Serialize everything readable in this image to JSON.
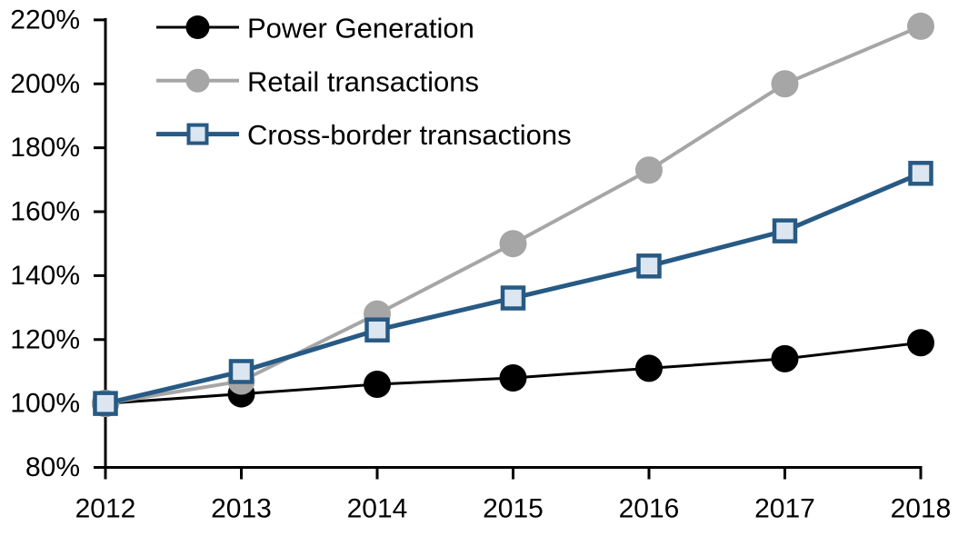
{
  "chart_data": {
    "type": "line",
    "title": "",
    "x": [
      2012,
      2013,
      2014,
      2015,
      2016,
      2017,
      2018
    ],
    "x_tick_labels": [
      "2012",
      "2013",
      "2014",
      "2015",
      "2016",
      "2017",
      "2018"
    ],
    "y_axis": {
      "min": 80,
      "max": 220,
      "step": 20,
      "unit": "%",
      "tick_labels": [
        "80%",
        "100%",
        "120%",
        "140%",
        "160%",
        "180%",
        "200%",
        "220%"
      ]
    },
    "grid": false,
    "legend_position": "top-left-inside",
    "series": [
      {
        "name": "Power Generation",
        "slug": "power-generation",
        "marker": "circle",
        "color": "#000000",
        "marker_fill": "#000000",
        "line_width": 3,
        "values": [
          100,
          103,
          106,
          108,
          111,
          114,
          119
        ]
      },
      {
        "name": "Retail transactions",
        "slug": "retail-transactions",
        "marker": "circle",
        "color": "#A6A6A6",
        "marker_fill": "#A6A6A6",
        "line_width": 4,
        "values": [
          100,
          107,
          128,
          150,
          173,
          200,
          218
        ]
      },
      {
        "name": "Cross-border transactions",
        "slug": "cross-border-transactions",
        "marker": "square",
        "color": "#275A84",
        "marker_fill": "#DCE6F1",
        "line_width": 5,
        "values": [
          100,
          110,
          123,
          133,
          143,
          154,
          172
        ]
      }
    ]
  },
  "colors": {
    "background": "#FFFFFF",
    "axis": "#000000",
    "text": "#000000"
  }
}
